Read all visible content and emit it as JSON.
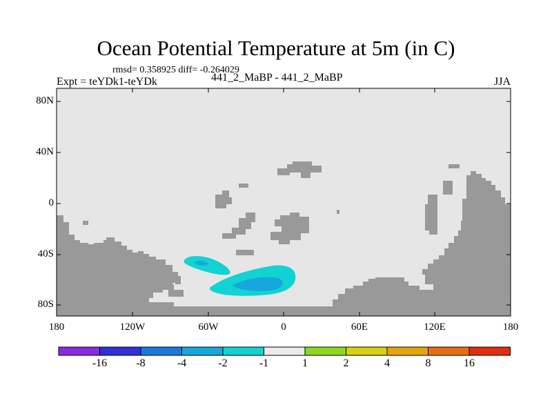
{
  "title": "Ocean Potential Temperature at 5m (in C)",
  "stats": "rmsd= 0.358925 diff= -0.264029",
  "experiment": "Expt = teYDk1-teYDk",
  "case_label": "441_2_MaBP - 441_2_MaBP",
  "season": "JJA",
  "map": {
    "lat_ticks": [
      "80N",
      "40N",
      "0",
      "40S",
      "80S"
    ],
    "lon_ticks": [
      "180",
      "120W",
      "60W",
      "0",
      "60E",
      "120E",
      "180"
    ],
    "ocean_color": "#e6e6e6",
    "land_color": "#999999"
  },
  "colorbar": {
    "colors": [
      "#8a2be2",
      "#3030d8",
      "#1a78e0",
      "#16a8dc",
      "#12d2d2",
      "#ebebeb",
      "#8cd81c",
      "#d8d010",
      "#e8a410",
      "#e86e10",
      "#e02e10"
    ],
    "labels": [
      "-16",
      "-8",
      "-4",
      "-2",
      "-1",
      "1",
      "2",
      "4",
      "8",
      "16"
    ]
  }
}
